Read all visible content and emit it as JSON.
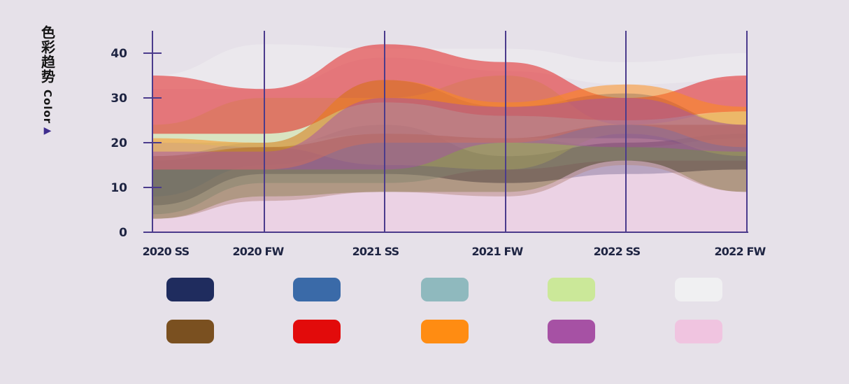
{
  "ylabel": {
    "zh": "色彩趋势",
    "en": "Color",
    "arrow": "▶"
  },
  "chart_data": {
    "type": "area",
    "x": [
      "2020 SS",
      "2020 FW",
      "2021 SS",
      "2021 FW",
      "2022 SS",
      "2022 FW"
    ],
    "ylim": [
      0,
      45
    ],
    "yticks": [
      0,
      10,
      20,
      30,
      40
    ],
    "grid": "vertical",
    "legend": "bottom",
    "series": [
      {
        "color": "#1f2c5e",
        "band": [
          [
            6,
            16
          ],
          [
            13,
            19
          ],
          [
            13,
            24
          ],
          [
            11,
            17
          ],
          [
            13,
            20
          ],
          [
            14,
            22
          ]
        ]
      },
      {
        "color": "#3a6aa8",
        "band": [
          [
            8,
            17
          ],
          [
            15,
            20
          ],
          [
            20,
            34
          ],
          [
            21,
            28
          ],
          [
            21,
            31
          ],
          [
            18,
            24
          ]
        ]
      },
      {
        "color": "#8fb9be",
        "band": [
          [
            4,
            20
          ],
          [
            11,
            20
          ],
          [
            11,
            22
          ],
          [
            14,
            21
          ],
          [
            16,
            19
          ],
          [
            16,
            21
          ]
        ]
      },
      {
        "color": "#cbe899",
        "band": [
          [
            20,
            24
          ],
          [
            19,
            30
          ],
          [
            15,
            30
          ],
          [
            14,
            35
          ],
          [
            22,
            24
          ],
          [
            17,
            27
          ]
        ]
      },
      {
        "color": "#f0f0f2",
        "band": [
          [
            32,
            35
          ],
          [
            32,
            42
          ],
          [
            39,
            41
          ],
          [
            36,
            41
          ],
          [
            33,
            38
          ],
          [
            34,
            40
          ]
        ]
      },
      {
        "color": "#7a5020",
        "band": [
          [
            3,
            17
          ],
          [
            7,
            19
          ],
          [
            9,
            22
          ],
          [
            8,
            21
          ],
          [
            15,
            24
          ],
          [
            9,
            24
          ]
        ]
      },
      {
        "color": "#e20b0b",
        "band": [
          [
            22,
            35
          ],
          [
            22,
            32
          ],
          [
            29,
            42
          ],
          [
            26,
            38
          ],
          [
            25,
            30
          ],
          [
            27,
            35
          ]
        ]
      },
      {
        "color": "#ff8c12",
        "band": [
          [
            14,
            21
          ],
          [
            14,
            20
          ],
          [
            20,
            34
          ],
          [
            20,
            29
          ],
          [
            24,
            33
          ],
          [
            19,
            28
          ]
        ]
      },
      {
        "color": "#a651a4",
        "band": [
          [
            14,
            18
          ],
          [
            14,
            18
          ],
          [
            14,
            30
          ],
          [
            20,
            28
          ],
          [
            19,
            30
          ],
          [
            18,
            24
          ]
        ]
      },
      {
        "color": "#f0c4e0",
        "band": [
          [
            0,
            3
          ],
          [
            0,
            8
          ],
          [
            0,
            9
          ],
          [
            0,
            9
          ],
          [
            0,
            16
          ],
          [
            0,
            9
          ]
        ]
      }
    ]
  }
}
